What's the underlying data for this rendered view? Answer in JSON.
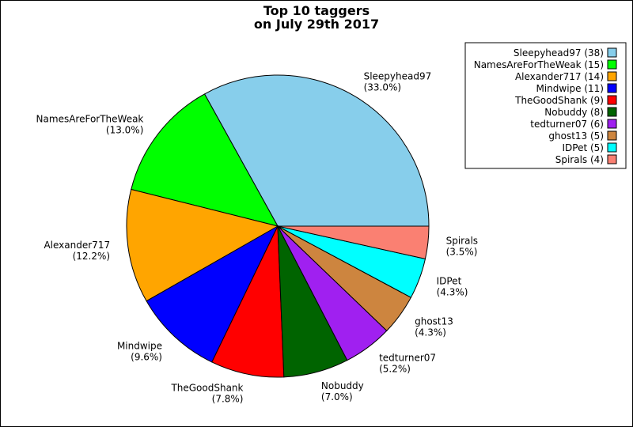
{
  "chart_data": {
    "type": "pie",
    "title": [
      "Top 10 taggers",
      "on July 29th 2017"
    ],
    "start_angle_deg": 0,
    "direction": "counterclockwise",
    "legend_placement": "top-right",
    "slices": [
      {
        "name": "Sleepyhead97",
        "count": 38,
        "percent_label": "(33.0%)",
        "legend_label": "Sleepyhead97 (38)",
        "color": "#87CEEB"
      },
      {
        "name": "NamesAreForTheWeak",
        "count": 15,
        "percent_label": "(13.0%)",
        "legend_label": "NamesAreForTheWeak (15)",
        "color": "#00FF00"
      },
      {
        "name": "Alexander717",
        "count": 14,
        "percent_label": "(12.2%)",
        "legend_label": "Alexander717 (14)",
        "color": "#FFA500"
      },
      {
        "name": "Mindwipe",
        "count": 11,
        "percent_label": "(9.6%)",
        "legend_label": "Mindwipe (11)",
        "color": "#0000FF"
      },
      {
        "name": "TheGoodShank",
        "count": 9,
        "percent_label": "(7.8%)",
        "legend_label": "TheGoodShank (9)",
        "color": "#FF0000"
      },
      {
        "name": "Nobuddy",
        "count": 8,
        "percent_label": "(7.0%)",
        "legend_label": "Nobuddy (8)",
        "color": "#006400"
      },
      {
        "name": "tedturner07",
        "count": 6,
        "percent_label": "(5.2%)",
        "legend_label": "tedturner07 (6)",
        "color": "#A020F0"
      },
      {
        "name": "ghost13",
        "count": 5,
        "percent_label": "(4.3%)",
        "legend_label": "ghost13 (5)",
        "color": "#CD853F"
      },
      {
        "name": "IDPet",
        "count": 5,
        "percent_label": "(4.3%)",
        "legend_label": "IDPet (5)",
        "color": "#00FFFF"
      },
      {
        "name": "Spirals",
        "count": 4,
        "percent_label": "(3.5%)",
        "legend_label": "Spirals (4)",
        "color": "#FA8072"
      }
    ]
  }
}
